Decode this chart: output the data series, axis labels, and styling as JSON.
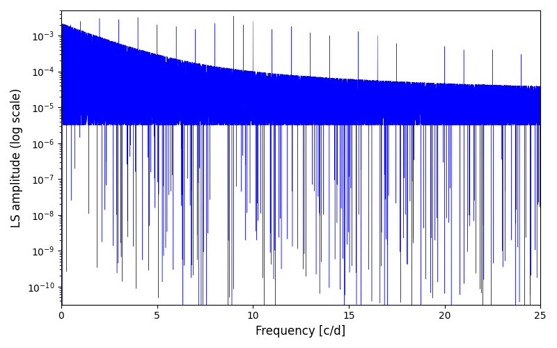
{
  "xlabel": "Frequency [c/d]",
  "ylabel": "LS amplitude (log scale)",
  "color": "#0000FF",
  "xlim": [
    0,
    25
  ],
  "ylim_log_min": -10.5,
  "ylim_log_max": -2.3,
  "seed": 1234,
  "n_points": 15000,
  "freq_max": 25.0,
  "background_color": "#ffffff",
  "linewidth": 0.3,
  "fig_width": 8.0,
  "fig_height": 5.0,
  "dpi": 100
}
